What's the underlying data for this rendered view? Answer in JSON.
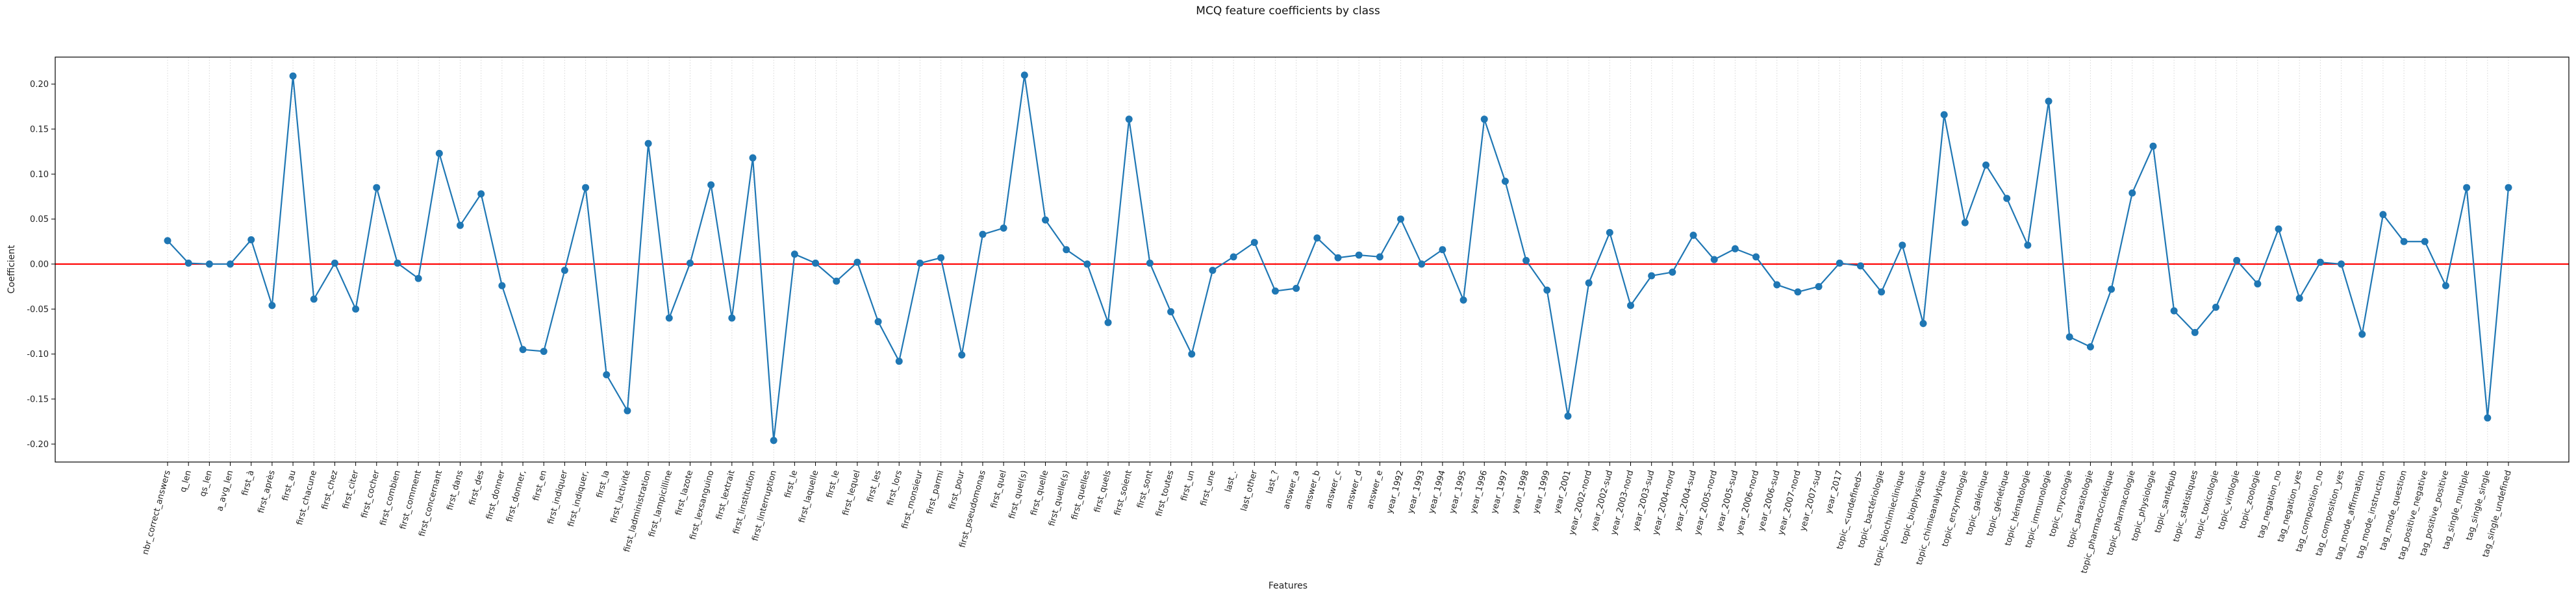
{
  "chart_data": {
    "type": "line",
    "title": "MCQ feature coefficients by class",
    "xlabel": "Features",
    "ylabel": "Coefficient",
    "ylim": [
      -0.22,
      0.23
    ],
    "yticks": [
      -0.2,
      -0.15,
      -0.1,
      -0.05,
      0.0,
      0.05,
      0.1,
      0.15,
      0.2
    ],
    "ytick_labels": [
      "-0.20",
      "-0.15",
      "-0.10",
      "-0.05",
      "0.00",
      "0.05",
      "0.10",
      "0.15",
      "0.20"
    ],
    "grid": "vertical",
    "reference_line": {
      "y": 0,
      "color": "#ff0000"
    },
    "colors": {
      "series": "#1f77b4",
      "zero_line": "#ff0000",
      "grid": "#e0e0e0",
      "axes": "#000000"
    },
    "x_label_rotation": "rotated ~75 degrees",
    "categories": [
      "nbr_correct_answers",
      "q_len",
      "qs_len",
      "a_avg_len",
      "first_à",
      "first_après",
      "first_au",
      "first_chacune",
      "first_chez",
      "first_citer",
      "first_cocher",
      "first_combien",
      "first_comment",
      "first_concernant",
      "first_dans",
      "first_des",
      "first_donner",
      "first_donner,",
      "first_en",
      "first_indiquer",
      "first_indiquer,",
      "first_la",
      "first_lactivité",
      "first_ladministration",
      "first_lampicilline",
      "first_lazote",
      "first_lexsanguino",
      "first_lextrait",
      "first_linstitution",
      "first_linterruption",
      "first_le",
      "first_laquelle",
      "first_le",
      "first_lequel",
      "first_les",
      "first_lors",
      "first_monsieur",
      "first_parmi",
      "first_pour",
      "first_pseudomonas",
      "first_quel",
      "first_quel(s)",
      "first_quelle",
      "first_quelle(s)",
      "first_quelles",
      "first_quels",
      "first_soient",
      "first_sont",
      "first_toutes",
      "first_un",
      "first_une",
      "last_.",
      "last_other",
      "last_?",
      "answer_a",
      "answer_b",
      "answer_c",
      "answer_d",
      "answer_e",
      "year_1992",
      "year_1993",
      "year_1994",
      "year_1995",
      "year_1996",
      "year_1997",
      "year_1998",
      "year_1999",
      "year_2001",
      "year_2002-nord",
      "year_2002-sud",
      "year_2003-nord",
      "year_2003-sud",
      "year_2004-nord",
      "year_2004-sud",
      "year_2005-nord",
      "year_2005-sud",
      "year_2006-nord",
      "year_2006-sud",
      "year_2007-nord",
      "year_2007-sud",
      "year_2017",
      "topic_<undefined>",
      "topic_bactériologie",
      "topic_biochimieclinique",
      "topic_biophysique",
      "topic_chimieanalytique",
      "topic_enzymologie",
      "topic_galénique",
      "topic_génétique",
      "topic_hématologie",
      "topic_immunologie",
      "topic_mycologie",
      "topic_parasitologie",
      "topic_pharmacocinétique",
      "topic_pharmacologie",
      "topic_physiologie",
      "topic_santépub",
      "topic_statistiques",
      "topic_toxicologie",
      "topic_virologie",
      "topic_zoologie",
      "tag_negation_no",
      "tag_negation_yes",
      "tag_composition_no",
      "tag_composition_yes",
      "tag_mode_affirmation",
      "tag_mode_instruction",
      "tag_mode_question",
      "tag_positive_negative",
      "tag_positive_positive",
      "tag_single_multiple",
      "tag_single_single",
      "tag_single_undefined"
    ],
    "series": [
      {
        "values": [
          0.026,
          0.001,
          0.0,
          0.0,
          0.027,
          -0.046,
          0.209,
          -0.039,
          0.001,
          -0.05,
          0.085,
          0.001,
          -0.016,
          0.123,
          0.043,
          0.078,
          -0.024,
          -0.095,
          -0.097,
          -0.007,
          0.085,
          -0.123,
          -0.163,
          0.134,
          -0.06,
          0.001,
          0.088,
          -0.06,
          0.118,
          -0.196,
          0.011,
          0.001,
          -0.019,
          0.002,
          -0.064,
          -0.108,
          0.001,
          0.007,
          -0.101,
          0.033,
          0.04,
          0.21,
          0.049,
          0.016,
          0.0,
          -0.065,
          0.161,
          0.001,
          -0.053,
          -0.1,
          -0.007,
          0.008,
          0.024,
          -0.03,
          -0.027,
          0.029,
          0.007,
          0.01,
          0.008,
          0.05,
          0.0,
          0.016,
          -0.04,
          0.161,
          0.092,
          0.004,
          -0.029,
          -0.169,
          -0.021,
          0.035,
          -0.046,
          -0.013,
          -0.009,
          0.032,
          0.005,
          0.017,
          0.008,
          -0.023,
          -0.031,
          -0.025,
          0.001,
          -0.002,
          -0.031,
          0.021,
          -0.066,
          0.166,
          0.046,
          0.11,
          0.073,
          0.021,
          0.181,
          -0.081,
          -0.092,
          -0.028,
          0.079,
          0.131,
          -0.052,
          -0.076,
          -0.048,
          0.004,
          -0.022,
          0.039,
          -0.038,
          0.002,
          0.0,
          -0.078,
          0.055,
          0.025,
          0.025,
          -0.024,
          0.085,
          -0.171,
          0.085
        ]
      }
    ]
  }
}
